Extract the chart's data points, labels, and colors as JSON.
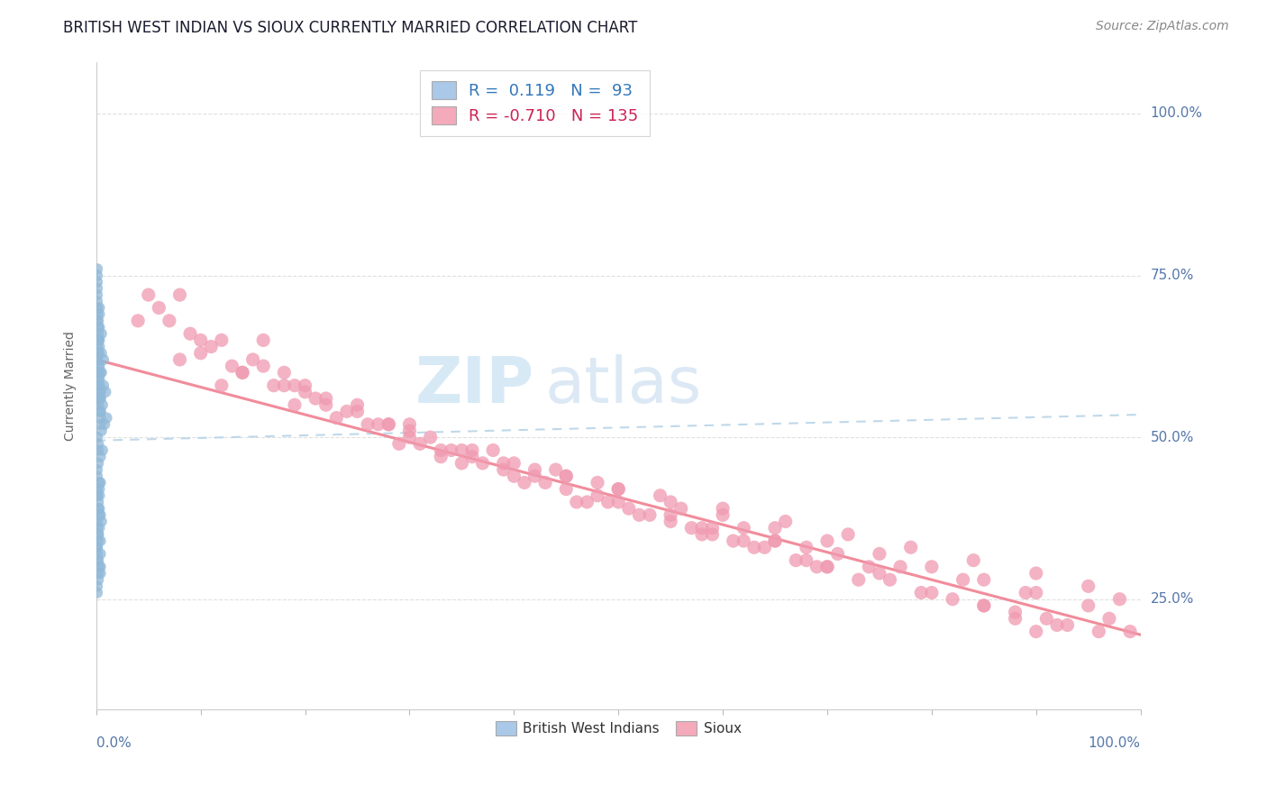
{
  "title": "BRITISH WEST INDIAN VS SIOUX CURRENTLY MARRIED CORRELATION CHART",
  "source": "Source: ZipAtlas.com",
  "ylabel": "Currently Married",
  "y_tick_labels": [
    "25.0%",
    "50.0%",
    "75.0%",
    "100.0%"
  ],
  "y_tick_positions": [
    0.25,
    0.5,
    0.75,
    1.0
  ],
  "bottom_legend": [
    "British West Indians",
    "Sioux"
  ],
  "bottom_legend_colors": [
    "#aac8e8",
    "#f4aabb"
  ],
  "legend_box_colors": [
    "#aac8e8",
    "#f4aabb"
  ],
  "blue_scatter_x": [
    0.001,
    0.002,
    0.001,
    0.003,
    0.002,
    0.002,
    0.004,
    0.003,
    0.001,
    0.002,
    0.003,
    0.001,
    0.002,
    0.002,
    0.004,
    0.005,
    0.003,
    0.002,
    0.001,
    0.001,
    0.004,
    0.002,
    0.001,
    0.003,
    0.002,
    0.001,
    0.001,
    0.002,
    0.003,
    0.004,
    0.001,
    0.002,
    0.003,
    0.004,
    0.002,
    0.001,
    0.001,
    0.003,
    0.002,
    0.004,
    0.001,
    0.002,
    0.001,
    0.003,
    0.001,
    0.002,
    0.004,
    0.004,
    0.001,
    0.002,
    0.003,
    0.001,
    0.001,
    0.002,
    0.004,
    0.005,
    0.003,
    0.002,
    0.001,
    0.001,
    0.004,
    0.002,
    0.001,
    0.003,
    0.002,
    0.001,
    0.001,
    0.002,
    0.003,
    0.004,
    0.001,
    0.002,
    0.003,
    0.004,
    0.002,
    0.001,
    0.001,
    0.003,
    0.002,
    0.004,
    0.006,
    0.007,
    0.005,
    0.008,
    0.004,
    0.009,
    0.004,
    0.01,
    0.006,
    0.005,
    0.005,
    0.007,
    0.003
  ],
  "blue_scatter_y": [
    0.62,
    0.65,
    0.7,
    0.58,
    0.63,
    0.67,
    0.6,
    0.64,
    0.68,
    0.56,
    0.61,
    0.72,
    0.59,
    0.66,
    0.57,
    0.63,
    0.69,
    0.55,
    0.71,
    0.74,
    0.54,
    0.68,
    0.62,
    0.65,
    0.6,
    0.73,
    0.76,
    0.58,
    0.67,
    0.53,
    0.64,
    0.61,
    0.7,
    0.56,
    0.65,
    0.69,
    0.75,
    0.57,
    0.63,
    0.52,
    0.5,
    0.48,
    0.45,
    0.42,
    0.44,
    0.46,
    0.43,
    0.47,
    0.41,
    0.49,
    0.38,
    0.33,
    0.36,
    0.4,
    0.34,
    0.37,
    0.39,
    0.35,
    0.31,
    0.32,
    0.3,
    0.28,
    0.41,
    0.43,
    0.29,
    0.42,
    0.27,
    0.34,
    0.36,
    0.38,
    0.33,
    0.35,
    0.3,
    0.32,
    0.39,
    0.37,
    0.26,
    0.41,
    0.31,
    0.29,
    0.55,
    0.58,
    0.6,
    0.52,
    0.54,
    0.57,
    0.56,
    0.53,
    0.48,
    0.51,
    0.66,
    0.62,
    0.59
  ],
  "pink_scatter_x": [
    0.04,
    0.08,
    0.12,
    0.16,
    0.1,
    0.2,
    0.25,
    0.18,
    0.22,
    0.3,
    0.08,
    0.14,
    0.19,
    0.28,
    0.32,
    0.36,
    0.4,
    0.45,
    0.5,
    0.55,
    0.12,
    0.18,
    0.24,
    0.3,
    0.35,
    0.42,
    0.48,
    0.54,
    0.6,
    0.66,
    0.72,
    0.78,
    0.84,
    0.9,
    0.95,
    0.98,
    0.6,
    0.65,
    0.7,
    0.75,
    0.8,
    0.85,
    0.9,
    0.95,
    0.97,
    0.99,
    0.06,
    0.11,
    0.17,
    0.23,
    0.29,
    0.35,
    0.41,
    0.47,
    0.53,
    0.59,
    0.65,
    0.71,
    0.77,
    0.83,
    0.89,
    0.15,
    0.21,
    0.27,
    0.33,
    0.39,
    0.45,
    0.51,
    0.57,
    0.63,
    0.69,
    0.38,
    0.44,
    0.5,
    0.56,
    0.62,
    0.68,
    0.74,
    0.09,
    0.13,
    0.26,
    0.31,
    0.37,
    0.43,
    0.49,
    0.55,
    0.61,
    0.67,
    0.73,
    0.79,
    0.85,
    0.91,
    0.96,
    0.07,
    0.2,
    0.34,
    0.46,
    0.58,
    0.7,
    0.82,
    0.93,
    0.16,
    0.28,
    0.4,
    0.52,
    0.64,
    0.76,
    0.88,
    0.05,
    0.25,
    0.45,
    0.65,
    0.85,
    0.33,
    0.55,
    0.75,
    0.92,
    0.48,
    0.68,
    0.14,
    0.36,
    0.58,
    0.8,
    0.22,
    0.42,
    0.62,
    0.88,
    0.1,
    0.3,
    0.5,
    0.7,
    0.9,
    0.19,
    0.39,
    0.59
  ],
  "pink_scatter_y": [
    0.68,
    0.62,
    0.58,
    0.65,
    0.63,
    0.57,
    0.55,
    0.6,
    0.56,
    0.52,
    0.72,
    0.6,
    0.55,
    0.52,
    0.5,
    0.48,
    0.46,
    0.44,
    0.42,
    0.4,
    0.65,
    0.58,
    0.54,
    0.5,
    0.48,
    0.45,
    0.43,
    0.41,
    0.39,
    0.37,
    0.35,
    0.33,
    0.31,
    0.29,
    0.27,
    0.25,
    0.38,
    0.36,
    0.34,
    0.32,
    0.3,
    0.28,
    0.26,
    0.24,
    0.22,
    0.2,
    0.7,
    0.64,
    0.58,
    0.53,
    0.49,
    0.46,
    0.43,
    0.4,
    0.38,
    0.36,
    0.34,
    0.32,
    0.3,
    0.28,
    0.26,
    0.62,
    0.56,
    0.52,
    0.48,
    0.45,
    0.42,
    0.39,
    0.36,
    0.33,
    0.3,
    0.48,
    0.45,
    0.42,
    0.39,
    0.36,
    0.33,
    0.3,
    0.66,
    0.61,
    0.52,
    0.49,
    0.46,
    0.43,
    0.4,
    0.37,
    0.34,
    0.31,
    0.28,
    0.26,
    0.24,
    0.22,
    0.2,
    0.68,
    0.58,
    0.48,
    0.4,
    0.35,
    0.3,
    0.25,
    0.21,
    0.61,
    0.52,
    0.44,
    0.38,
    0.33,
    0.28,
    0.23,
    0.72,
    0.54,
    0.44,
    0.34,
    0.24,
    0.47,
    0.38,
    0.29,
    0.21,
    0.41,
    0.31,
    0.6,
    0.47,
    0.36,
    0.26,
    0.55,
    0.44,
    0.34,
    0.22,
    0.65,
    0.51,
    0.4,
    0.3,
    0.2,
    0.58,
    0.46,
    0.35
  ],
  "blue_trend_y_start": 0.495,
  "blue_trend_y_end": 0.535,
  "pink_trend_y_start": 0.62,
  "pink_trend_y_end": 0.195,
  "watermark_zip": "ZIP",
  "watermark_atlas": "atlas",
  "title_color": "#1a1a2e",
  "title_fontsize": 12,
  "source_color": "#888888",
  "blue_color": "#90b8d8",
  "pink_color": "#f09ab0",
  "blue_trend_color": "#b8d4e8",
  "pink_trend_color": "#f08090",
  "axis_label_color": "#5577aa",
  "grid_color": "#e0e0e0",
  "background_color": "#ffffff",
  "xlim": [
    0.0,
    1.0
  ],
  "ylim": [
    0.08,
    1.08
  ]
}
